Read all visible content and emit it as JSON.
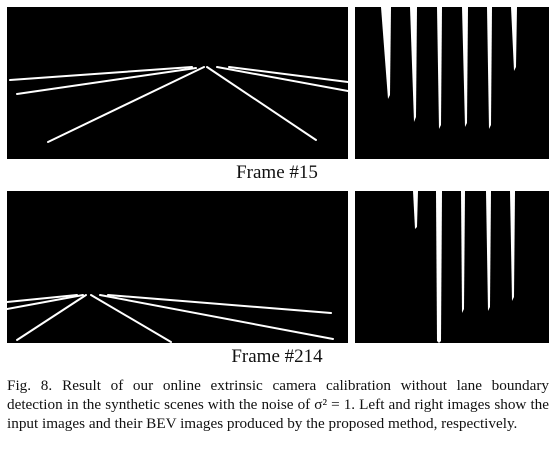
{
  "figure": {
    "frames": [
      {
        "label": "Frame #15"
      },
      {
        "label": "Frame #214"
      }
    ],
    "caption": {
      "label": "Fig. 8.",
      "text": "Result of our online extrinsic camera calibration without lane boundary detection in the synthetic scenes with the noise of σ² = 1. Left and right images show the input images and their BEV images produced by the proposed method, respectively."
    }
  }
}
